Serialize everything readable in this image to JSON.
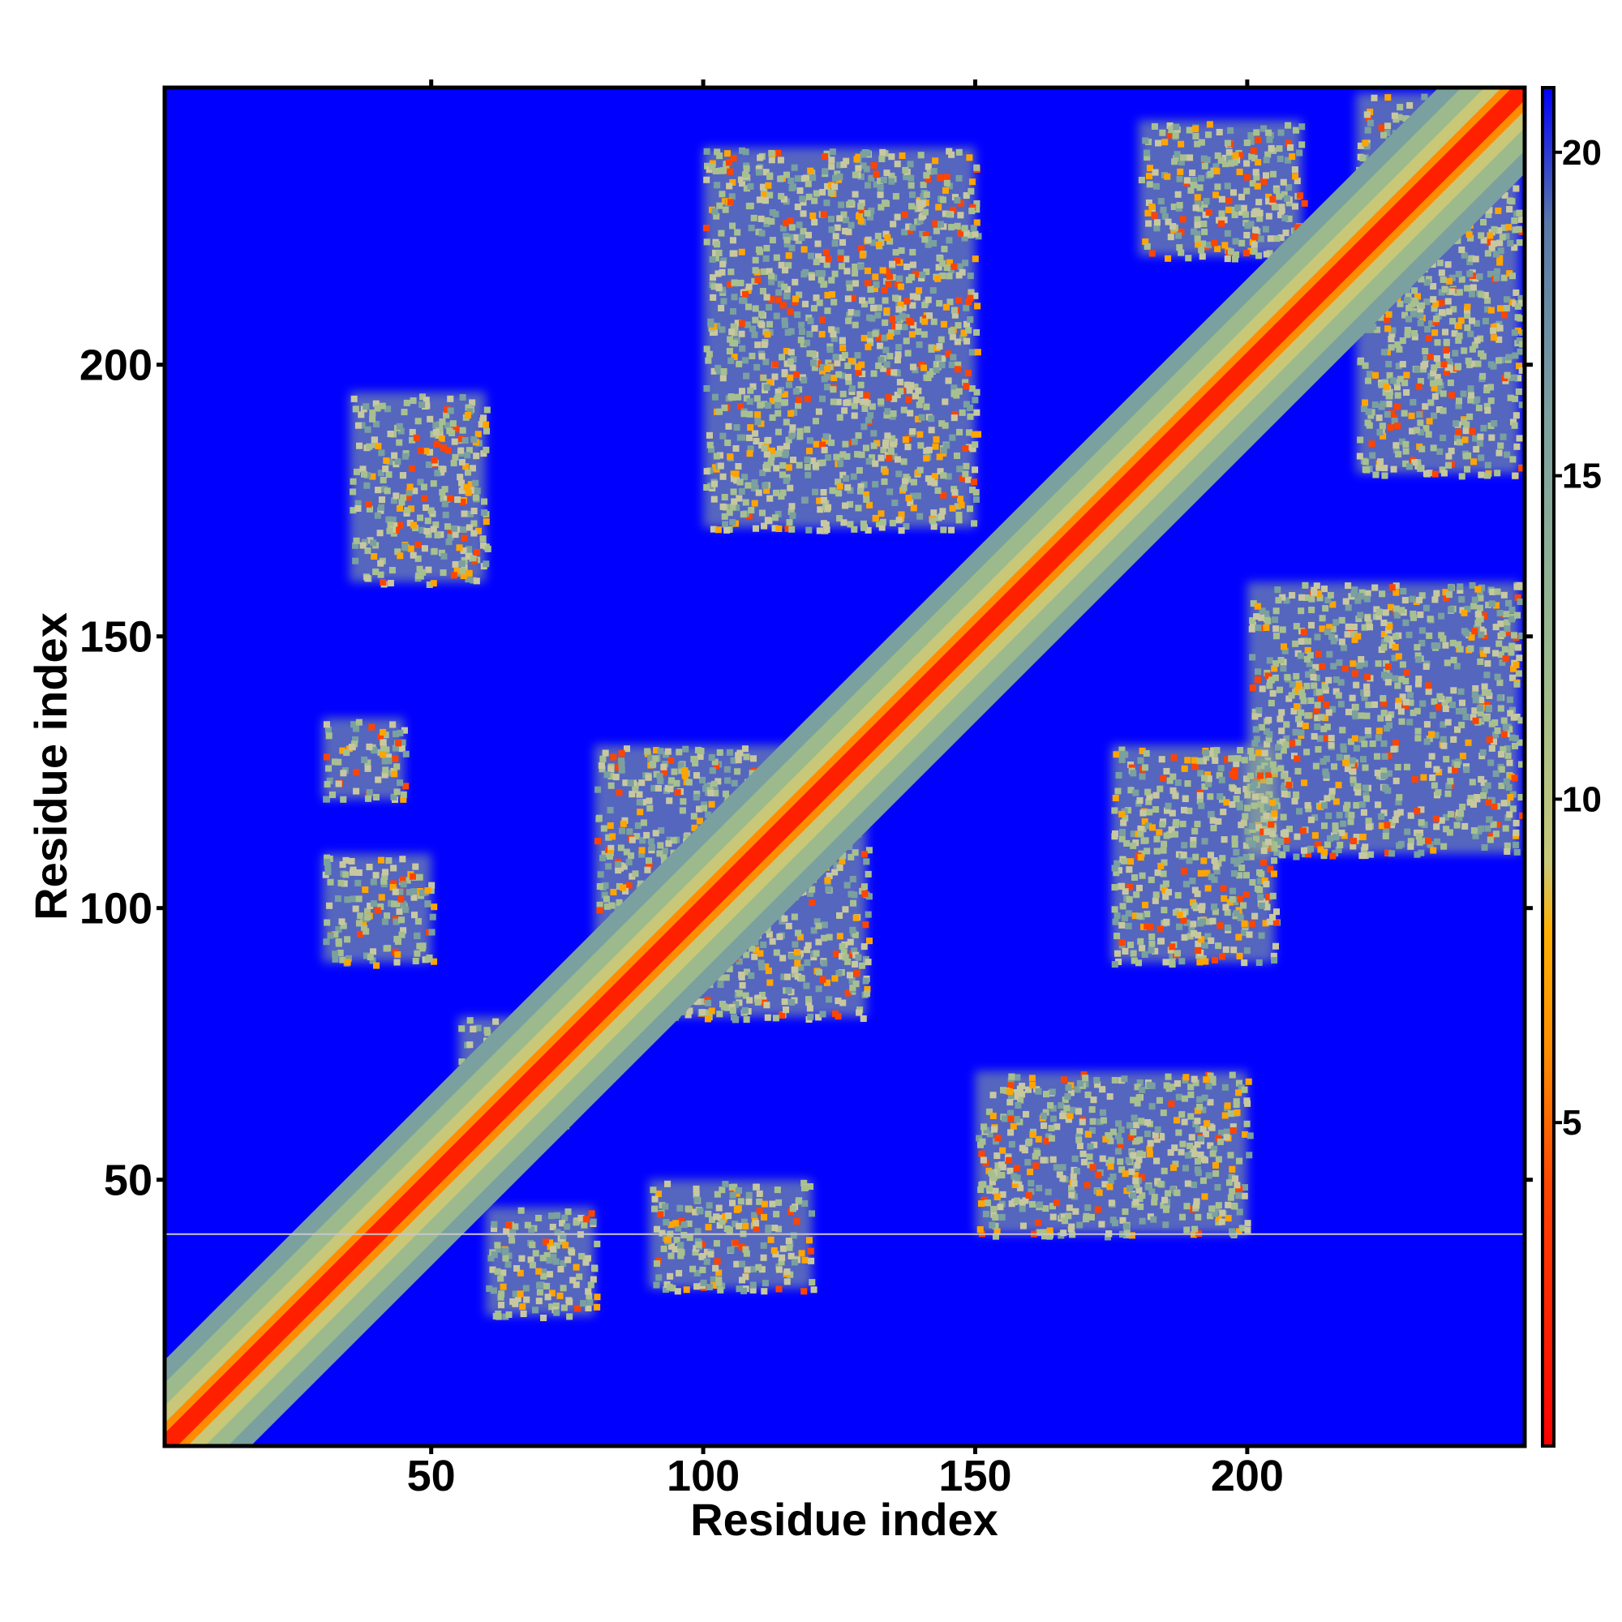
{
  "chart_data": {
    "type": "heatmap",
    "title": "",
    "xlabel": "Residue index",
    "ylabel": "Residue index",
    "xlim": [
      1,
      251
    ],
    "ylim": [
      1,
      251
    ],
    "x_ticks": [
      50,
      100,
      150,
      200
    ],
    "y_ticks": [
      50,
      100,
      150,
      200
    ],
    "grid": false,
    "colorbar": {
      "placement": "right",
      "range": [
        0,
        21
      ],
      "ticks": [
        5,
        10,
        15,
        20
      ],
      "stops": [
        {
          "value": 0,
          "color": "#ff0000"
        },
        {
          "value": 4,
          "color": "#ff4400"
        },
        {
          "value": 6,
          "color": "#ff8c00"
        },
        {
          "value": 8,
          "color": "#ffb000"
        },
        {
          "value": 9,
          "color": "#c8c878"
        },
        {
          "value": 12,
          "color": "#9cba8c"
        },
        {
          "value": 16,
          "color": "#7aa0a0"
        },
        {
          "value": 19,
          "color": "#5878a8"
        },
        {
          "value": 21,
          "color": "#0000ff"
        }
      ],
      "background_color": "#0000ff"
    },
    "diagonal_band": {
      "from": 1,
      "to": 251,
      "description": "self-contact diagonal (distance near 0)"
    },
    "contact_regions": [
      {
        "x": [
          55,
          75
        ],
        "y": [
          60,
          80
        ]
      },
      {
        "x": [
          30,
          50
        ],
        "y": [
          90,
          110
        ]
      },
      {
        "x": [
          30,
          45
        ],
        "y": [
          120,
          135
        ]
      },
      {
        "x": [
          35,
          60
        ],
        "y": [
          160,
          195
        ]
      },
      {
        "x": [
          60,
          80
        ],
        "y": [
          25,
          45
        ]
      },
      {
        "x": [
          90,
          120
        ],
        "y": [
          30,
          50
        ]
      },
      {
        "x": [
          80,
          130
        ],
        "y": [
          80,
          130
        ]
      },
      {
        "x": [
          100,
          150
        ],
        "y": [
          170,
          240
        ]
      },
      {
        "x": [
          150,
          200
        ],
        "y": [
          40,
          70
        ]
      },
      {
        "x": [
          175,
          205
        ],
        "y": [
          90,
          130
        ]
      },
      {
        "x": [
          180,
          210
        ],
        "y": [
          220,
          245
        ]
      },
      {
        "x": [
          200,
          250
        ],
        "y": [
          110,
          160
        ]
      },
      {
        "x": [
          220,
          250
        ],
        "y": [
          180,
          250
        ]
      }
    ],
    "highlight_row": 40
  }
}
